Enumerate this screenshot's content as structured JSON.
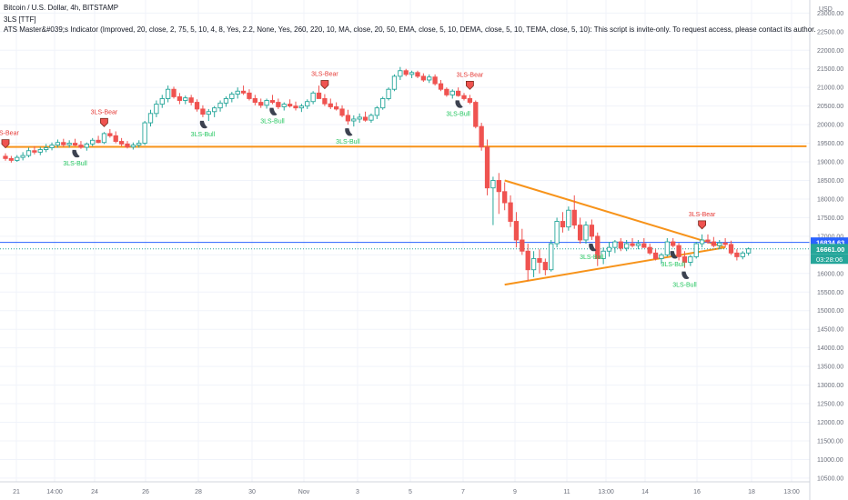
{
  "header": {
    "symbol_line": "Bitcoin / U.S. Dollar, 4h, BITSTAMP",
    "indicator_1": "3LS [TTF]",
    "indicator_2": "ATS Master&#039;s Indicator (Improved, 20, close, 2, 75, 5, 10, 4, 8, Yes, 2.2, None, Yes, 260, 220, 10, MA, close, 20, 50, EMA, close, 5, 10, DEMA, close, 5, 10, TEMA, close, 5, 10): This script is invite-only. To request access, please contact its author."
  },
  "colors": {
    "up": "#26a69a",
    "down": "#ef5350",
    "trendline": "#f7931a",
    "price_line": "#2962ff",
    "bull_label": "#22c55e",
    "bear_label": "#e53935",
    "grid": "#f0f3fa",
    "axis_text": "#6b6f7b"
  },
  "price_axis": {
    "currency": "USD",
    "ticks": [
      10500,
      11000,
      11500,
      12000,
      12500,
      13000,
      13500,
      14000,
      14500,
      15000,
      15500,
      16000,
      16500,
      17000,
      17500,
      18000,
      18500,
      19000,
      19500,
      20000,
      20500,
      21000,
      21500,
      22000,
      22500,
      23000
    ],
    "tick_labels": [
      "10500.00",
      "11000.00",
      "11500.00",
      "12000.00",
      "12500.00",
      "13000.00",
      "13500.00",
      "14000.00",
      "14500.00",
      "15000.00",
      "15500.00",
      "16000.00",
      "16500.00",
      "17000.00",
      "17500.00",
      "18000.00",
      "18500.00",
      "19000.00",
      "19500.00",
      "20000.00",
      "20500.00",
      "21000.00",
      "21500.00",
      "22000.00",
      "22500.00",
      "23000.00"
    ],
    "ylim": [
      10400,
      23350
    ],
    "labels": {
      "level": "16834.63",
      "last": "16661.00",
      "countdown": "03:28:06"
    }
  },
  "time_axis": {
    "labels": [
      "21",
      "14:00",
      "24",
      "26",
      "28",
      "30",
      "Nov",
      "3",
      "5",
      "7",
      "9",
      "11",
      "13:00",
      "14",
      "16",
      "18",
      "13:00"
    ]
  },
  "chart_data": {
    "type": "candlestick",
    "timeframe": "4h",
    "ylim": [
      10400,
      23350
    ],
    "candles": [
      [
        19150,
        19230,
        19030,
        19090
      ],
      [
        19090,
        19160,
        18980,
        19040
      ],
      [
        19040,
        19180,
        19000,
        19120
      ],
      [
        19120,
        19260,
        19040,
        19170
      ],
      [
        19170,
        19380,
        19120,
        19300
      ],
      [
        19300,
        19420,
        19200,
        19260
      ],
      [
        19260,
        19400,
        19180,
        19330
      ],
      [
        19330,
        19480,
        19260,
        19380
      ],
      [
        19380,
        19520,
        19310,
        19450
      ],
      [
        19450,
        19600,
        19380,
        19520
      ],
      [
        19520,
        19620,
        19400,
        19460
      ],
      [
        19460,
        19580,
        19380,
        19500
      ],
      [
        19500,
        19620,
        19420,
        19450
      ],
      [
        19450,
        19560,
        19350,
        19390
      ],
      [
        19390,
        19520,
        19300,
        19480
      ],
      [
        19480,
        19640,
        19420,
        19580
      ],
      [
        19580,
        19700,
        19500,
        19520
      ],
      [
        19520,
        19800,
        19480,
        19760
      ],
      [
        19760,
        19880,
        19650,
        19700
      ],
      [
        19700,
        19820,
        19500,
        19550
      ],
      [
        19550,
        19640,
        19420,
        19480
      ],
      [
        19480,
        19560,
        19360,
        19400
      ],
      [
        19400,
        19520,
        19330,
        19450
      ],
      [
        19450,
        19580,
        19380,
        19500
      ],
      [
        19500,
        20100,
        19450,
        20050
      ],
      [
        20050,
        20400,
        19950,
        20300
      ],
      [
        20300,
        20650,
        20200,
        20550
      ],
      [
        20550,
        20800,
        20450,
        20700
      ],
      [
        20700,
        21050,
        20600,
        20950
      ],
      [
        20950,
        21020,
        20700,
        20750
      ],
      [
        20750,
        20850,
        20550,
        20650
      ],
      [
        20650,
        20780,
        20550,
        20720
      ],
      [
        20720,
        20800,
        20520,
        20600
      ],
      [
        20600,
        20680,
        20350,
        20420
      ],
      [
        20420,
        20520,
        20200,
        20280
      ],
      [
        20280,
        20420,
        20100,
        20350
      ],
      [
        20350,
        20500,
        20200,
        20450
      ],
      [
        20450,
        20650,
        20350,
        20580
      ],
      [
        20580,
        20760,
        20480,
        20700
      ],
      [
        20700,
        20880,
        20600,
        20820
      ],
      [
        20820,
        21000,
        20700,
        20900
      ],
      [
        20900,
        21050,
        20800,
        20850
      ],
      [
        20850,
        20950,
        20650,
        20700
      ],
      [
        20700,
        20800,
        20520,
        20600
      ],
      [
        20600,
        20700,
        20450,
        20520
      ],
      [
        20520,
        20700,
        20430,
        20650
      ],
      [
        20650,
        20800,
        20550,
        20600
      ],
      [
        20600,
        20700,
        20420,
        20480
      ],
      [
        20480,
        20600,
        20380,
        20550
      ],
      [
        20550,
        20680,
        20460,
        20500
      ],
      [
        20500,
        20620,
        20380,
        20450
      ],
      [
        20450,
        20560,
        20340,
        20500
      ],
      [
        20500,
        20680,
        20420,
        20620
      ],
      [
        20620,
        20900,
        20550,
        20850
      ],
      [
        20850,
        21050,
        20750,
        20700
      ],
      [
        20700,
        20820,
        20500,
        20560
      ],
      [
        20560,
        20700,
        20420,
        20480
      ],
      [
        20480,
        20600,
        20380,
        20420
      ],
      [
        20420,
        20520,
        20200,
        20250
      ],
      [
        20250,
        20400,
        20000,
        20100
      ],
      [
        20100,
        20250,
        19950,
        20150
      ],
      [
        20150,
        20300,
        20050,
        20200
      ],
      [
        20200,
        20350,
        20080,
        20120
      ],
      [
        20120,
        20300,
        20050,
        20250
      ],
      [
        20250,
        20500,
        20150,
        20450
      ],
      [
        20450,
        20750,
        20400,
        20700
      ],
      [
        20700,
        21000,
        20650,
        20950
      ],
      [
        20950,
        21350,
        20900,
        21300
      ],
      [
        21300,
        21550,
        21200,
        21450
      ],
      [
        21450,
        21500,
        21300,
        21350
      ],
      [
        21350,
        21450,
        21250,
        21400
      ],
      [
        21400,
        21450,
        21250,
        21300
      ],
      [
        21300,
        21380,
        21150,
        21200
      ],
      [
        21200,
        21350,
        21120,
        21280
      ],
      [
        21280,
        21350,
        21050,
        21100
      ],
      [
        21100,
        21200,
        20900,
        20950
      ],
      [
        20950,
        21000,
        20750,
        20800
      ],
      [
        20800,
        20950,
        20700,
        20900
      ],
      [
        20900,
        21000,
        20750,
        20780
      ],
      [
        20780,
        20850,
        20650,
        20700
      ],
      [
        20700,
        20800,
        20550,
        20600
      ],
      [
        20600,
        20650,
        19900,
        19950
      ],
      [
        19950,
        20050,
        19300,
        19400
      ],
      [
        19400,
        19600,
        18100,
        18300
      ],
      [
        18300,
        18600,
        17300,
        18500
      ],
      [
        18500,
        18700,
        17600,
        18200
      ],
      [
        18200,
        18450,
        17700,
        17900
      ],
      [
        17900,
        18100,
        17250,
        17400
      ],
      [
        17400,
        17650,
        16700,
        16900
      ],
      [
        16900,
        17200,
        16500,
        16600
      ],
      [
        16600,
        16800,
        15800,
        16100
      ],
      [
        16100,
        16600,
        15900,
        16400
      ],
      [
        16400,
        16650,
        16000,
        16300
      ],
      [
        16300,
        16400,
        15950,
        16100
      ],
      [
        16100,
        16900,
        16050,
        16800
      ],
      [
        16800,
        17500,
        16700,
        17400
      ],
      [
        17400,
        17650,
        17100,
        17250
      ],
      [
        17250,
        17800,
        17150,
        17700
      ],
      [
        17700,
        18100,
        17200,
        17300
      ],
      [
        17300,
        17500,
        16800,
        16900
      ],
      [
        16900,
        17400,
        16800,
        17300
      ],
      [
        17300,
        17450,
        16900,
        17000
      ],
      [
        17000,
        17100,
        16200,
        16400
      ],
      [
        16400,
        16700,
        16250,
        16600
      ],
      [
        16600,
        16850,
        16450,
        16700
      ],
      [
        16700,
        16900,
        16550,
        16850
      ],
      [
        16850,
        16950,
        16600,
        16680
      ],
      [
        16680,
        16900,
        16600,
        16800
      ],
      [
        16800,
        16950,
        16700,
        16750
      ],
      [
        16750,
        16900,
        16650,
        16800
      ],
      [
        16800,
        16950,
        16700,
        16700
      ],
      [
        16700,
        16800,
        16500,
        16550
      ],
      [
        16550,
        16650,
        16350,
        16400
      ],
      [
        16400,
        16550,
        16250,
        16500
      ],
      [
        16500,
        16950,
        16450,
        16850
      ],
      [
        16850,
        16950,
        16700,
        16750
      ],
      [
        16750,
        16820,
        16350,
        16450
      ],
      [
        16450,
        16600,
        16150,
        16300
      ],
      [
        16300,
        16500,
        16200,
        16450
      ],
      [
        16450,
        16850,
        16400,
        16800
      ],
      [
        16800,
        17050,
        16700,
        16900
      ],
      [
        16900,
        17050,
        16800,
        16850
      ],
      [
        16850,
        16980,
        16700,
        16750
      ],
      [
        16750,
        16900,
        16650,
        16820
      ],
      [
        16820,
        16950,
        16700,
        16780
      ],
      [
        16780,
        16880,
        16500,
        16550
      ],
      [
        16550,
        16650,
        16350,
        16450
      ],
      [
        16450,
        16600,
        16380,
        16550
      ],
      [
        16550,
        16700,
        16480,
        16661
      ]
    ],
    "annotations": [
      {
        "type": "3LS-Bear",
        "text": "3LS-Bear",
        "bar": 0
      },
      {
        "type": "3LS-Bull",
        "text": "3LS-Bull",
        "bar": 12
      },
      {
        "type": "3LS-Bear",
        "text": "3LS-Bear",
        "bar": 17
      },
      {
        "type": "3LS-Bull",
        "text": "3LS-Bull",
        "bar": 34
      },
      {
        "type": "3LS-Bull",
        "text": "3LS-Bull",
        "bar": 46
      },
      {
        "type": "3LS-Bear",
        "text": "3LS-Bear",
        "bar": 55
      },
      {
        "type": "3LS-Bull",
        "text": "3LS-Bull",
        "bar": 59
      },
      {
        "type": "3LS-Bull",
        "text": "3LS-Bull",
        "bar": 78
      },
      {
        "type": "3LS-Bear",
        "text": "3LS-Bear",
        "bar": 80
      },
      {
        "type": "3LS-Bull",
        "text": "3LS-Bull",
        "bar": 101
      },
      {
        "type": "3LS-Bull",
        "text": "3LS-Bull",
        "bar": 115
      },
      {
        "type": "3LS-Bull",
        "text": "3LS-Bull",
        "bar": 117
      },
      {
        "type": "3LS-Bear",
        "text": "3LS-Bear",
        "bar": 120
      }
    ],
    "trendlines": [
      {
        "name": "horizontal-support",
        "from": [
          0,
          19400
        ],
        "to": [
          138,
          19420
        ]
      },
      {
        "name": "triangle-upper",
        "from": [
          86,
          18500
        ],
        "to": [
          124,
          16700
        ]
      },
      {
        "name": "triangle-lower",
        "from": [
          86,
          15700
        ],
        "to": [
          124,
          16700
        ]
      }
    ],
    "horizontal_lines": [
      {
        "name": "level",
        "price": 16834.63
      }
    ]
  }
}
